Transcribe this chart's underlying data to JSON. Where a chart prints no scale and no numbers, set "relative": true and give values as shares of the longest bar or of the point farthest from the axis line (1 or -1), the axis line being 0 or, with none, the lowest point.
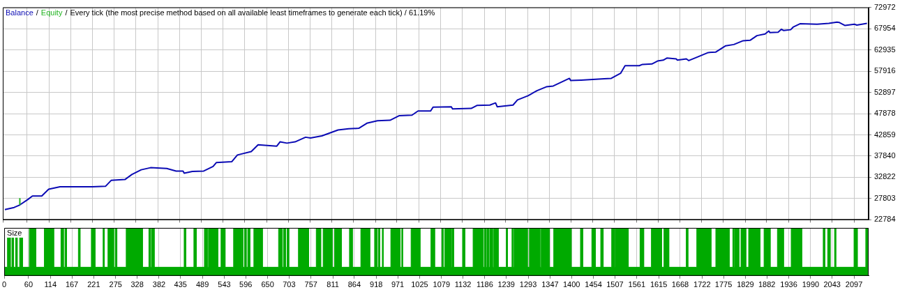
{
  "chart_data": [
    {
      "type": "line",
      "annotations": [
        "/",
        "/",
        "Every tick (the most precise method based on all available least timeframes to generate each tick) / 61.19%"
      ],
      "legend": "top left",
      "grid": true,
      "tick_labels": "y",
      "xlim": [
        0,
        2133
      ],
      "xticks": [
        0,
        60,
        114,
        167,
        221,
        275,
        328,
        382,
        435,
        489,
        543,
        596,
        650,
        703,
        757,
        811,
        864,
        918,
        971,
        1025,
        1079,
        1132,
        1186,
        1239,
        1293,
        1347,
        1400,
        1454,
        1507,
        1561,
        1615,
        1668,
        1722,
        1775,
        1829,
        1882,
        1936,
        1990,
        2043,
        2097
      ],
      "ylim": [
        22784,
        72972
      ],
      "yticks": [
        22784,
        27803,
        32822,
        37840,
        42859,
        47878,
        52897,
        57916,
        62935,
        67954,
        72972
      ],
      "series": [
        {
          "name": "Balance",
          "color": "#0a0ab4",
          "x": [
            5,
            28,
            42,
            62,
            73,
            96,
            113,
            141,
            193,
            221,
            253,
            267,
            301,
            318,
            341,
            364,
            404,
            427,
            444,
            447,
            467,
            495,
            518,
            526,
            564,
            578,
            612,
            629,
            646,
            675,
            683,
            700,
            720,
            746,
            758,
            786,
            826,
            852,
            877,
            897,
            923,
            954,
            977,
            1008,
            1023,
            1054,
            1060,
            1105,
            1108,
            1154,
            1168,
            1200,
            1214,
            1218,
            1257,
            1268,
            1294,
            1316,
            1339,
            1356,
            1396,
            1399,
            1425,
            1482,
            1499,
            1522,
            1533,
            1568,
            1576,
            1599,
            1613,
            1627,
            1636,
            1659,
            1662,
            1684,
            1690,
            1710,
            1738,
            1756,
            1781,
            1801,
            1824,
            1841,
            1858,
            1878,
            1887,
            1890,
            1910,
            1918,
            1924,
            1941,
            1947,
            1964,
            2006,
            2035,
            2055,
            2061,
            2075,
            2098,
            2104,
            2129
          ],
          "values": [
            25200,
            25700,
            26300,
            27600,
            28400,
            28400,
            30000,
            30600,
            30600,
            30600,
            30700,
            32100,
            32300,
            33500,
            34600,
            35100,
            34900,
            34300,
            34300,
            33800,
            34200,
            34300,
            35400,
            36300,
            36500,
            38100,
            38900,
            40500,
            40400,
            40200,
            41200,
            40900,
            41200,
            42300,
            42100,
            42600,
            44000,
            44300,
            44400,
            45600,
            46200,
            46300,
            47400,
            47500,
            48500,
            48500,
            49400,
            49500,
            49000,
            49100,
            49800,
            49900,
            50400,
            49500,
            49900,
            51100,
            52100,
            53300,
            54200,
            54400,
            56200,
            55700,
            55800,
            56100,
            56200,
            57400,
            59200,
            59200,
            59500,
            59600,
            60300,
            60500,
            61000,
            60800,
            60500,
            60800,
            60400,
            61200,
            62300,
            62400,
            63900,
            64200,
            65100,
            65200,
            66300,
            66700,
            67400,
            67000,
            67100,
            67800,
            67500,
            67700,
            68300,
            69100,
            69000,
            69200,
            69500,
            69400,
            68700,
            69000,
            68800,
            69200
          ]
        },
        {
          "name": "Equity",
          "color": "#22b422",
          "x": [
            42,
            42
          ],
          "values": [
            26300,
            27900
          ]
        }
      ]
    },
    {
      "type": "area",
      "title": "Size",
      "relative": true,
      "grid": "x",
      "tick_labels": "x",
      "xlim": [
        0,
        2133
      ],
      "xticks": [
        0,
        60,
        114,
        167,
        221,
        275,
        328,
        382,
        435,
        489,
        543,
        596,
        650,
        703,
        757,
        811,
        864,
        918,
        971,
        1025,
        1079,
        1132,
        1186,
        1239,
        1293,
        1347,
        1400,
        1454,
        1507,
        1561,
        1615,
        1668,
        1722,
        1775,
        1829,
        1882,
        1936,
        1990,
        2043,
        2097
      ],
      "series": [
        {
          "color": "#00aa00",
          "x": [
            0,
            8,
            8,
            15,
            15,
            19,
            19,
            23,
            23,
            28,
            28,
            32,
            32,
            38,
            38,
            45,
            45,
            62,
            62,
            78,
            78,
            99,
            99,
            122,
            122,
            140,
            140,
            146,
            146,
            150,
            150,
            154,
            154,
            183,
            183,
            187,
            187,
            215,
            215,
            224,
            224,
            244,
            244,
            247,
            247,
            256,
            256,
            270,
            270,
            274,
            274,
            278,
            278,
            301,
            301,
            341,
            341,
            357,
            357,
            361,
            361,
            364,
            364,
            370,
            370,
            444,
            444,
            448,
            448,
            468,
            468,
            474,
            474,
            494,
            494,
            501,
            501,
            504,
            504,
            527,
            527,
            535,
            535,
            545,
            545,
            566,
            566,
            584,
            584,
            586,
            586,
            589,
            589,
            593,
            593,
            597,
            597,
            601,
            601,
            606,
            606,
            616,
            616,
            637,
            637,
            677,
            677,
            686,
            686,
            689,
            689,
            694,
            694,
            698,
            698,
            702,
            702,
            726,
            726,
            751,
            751,
            770,
            770,
            781,
            781,
            787,
            787,
            809,
            809,
            815,
            815,
            832,
            832,
            852,
            852,
            859,
            859,
            880,
            880,
            902,
            902,
            914,
            914,
            920,
            920,
            923,
            923,
            927,
            927,
            933,
            933,
            935,
            935,
            954,
            954,
            977,
            977,
            981,
            981,
            983,
            983,
            1004,
            1004,
            1026,
            1026,
            1053,
            1053,
            1062,
            1062,
            1080,
            1080,
            1083,
            1083,
            1087,
            1087,
            1103,
            1103,
            1105,
            1105,
            1109,
            1109,
            1131,
            1131,
            1137,
            1137,
            1157,
            1157,
            1182,
            1182,
            1185,
            1185,
            1188,
            1188,
            1191,
            1191,
            1195,
            1195,
            1198,
            1198,
            1205,
            1205,
            1208,
            1208,
            1219,
            1219,
            1239,
            1239,
            1242,
            1242,
            1253,
            1253,
            1255,
            1255,
            1258,
            1258,
            1291,
            1291,
            1296,
            1296,
            1322,
            1322,
            1325,
            1325,
            1345,
            1345,
            1356,
            1356,
            1399,
            1399,
            1422,
            1422,
            1428,
            1428,
            1450,
            1450,
            1459,
            1459,
            1472,
            1472,
            1478,
            1478,
            1499,
            1499,
            1506,
            1506,
            1508,
            1508,
            1540,
            1540,
            1569,
            1569,
            1578,
            1578,
            1597,
            1597,
            1622,
            1622,
            1628,
            1628,
            1640,
            1640,
            1683,
            1683,
            1687,
            1687,
            1709,
            1709,
            1744,
            1744,
            1756,
            1756,
            1789,
            1789,
            1798,
            1798,
            1800,
            1800,
            1802,
            1802,
            1813,
            1813,
            1818,
            1818,
            1830,
            1830,
            1837,
            1837,
            1865,
            1865,
            1875,
            1875,
            1890,
            1890,
            1908,
            1908,
            1923,
            1923,
            1942,
            1942,
            1968,
            1968,
            2021,
            2021,
            2025,
            2025,
            2032,
            2032,
            2038,
            2038,
            2049,
            2049,
            2052,
            2052,
            2097,
            2097,
            2105,
            2105,
            2126,
            2126,
            2133
          ],
          "values": [
            0.18,
            0.18,
            1,
            1,
            0.18,
            0.18,
            1,
            1,
            0.18,
            0.18,
            1,
            1,
            0.18,
            0.18,
            1,
            1,
            0.18,
            0.18,
            1,
            1,
            0.18,
            0.18,
            1,
            1,
            0.18,
            0.18,
            1,
            1,
            0.18,
            0.18,
            1,
            1,
            0.18,
            0.18,
            1,
            1,
            0.18,
            0.18,
            1,
            1,
            0.18,
            0.18,
            1,
            1,
            0.18,
            0.18,
            1,
            1,
            0.18,
            0.18,
            1,
            1,
            0.18,
            0.18,
            1,
            1,
            0.18,
            0.18,
            1,
            1,
            0.18,
            0.18,
            1,
            1,
            0.18,
            0.18,
            1,
            1,
            0.18,
            0.18,
            1,
            1,
            0.18,
            0.18,
            1,
            1,
            0.18,
            0.18,
            1,
            1,
            0.18,
            0.18,
            1,
            1,
            0.18,
            0.18,
            1,
            1,
            0.18,
            0.18,
            1,
            1,
            0.18,
            0.18,
            1,
            1,
            0.18,
            0.18,
            1,
            1,
            0.18,
            0.18,
            1,
            1,
            0.18,
            0.18,
            1,
            1,
            0.18,
            0.18,
            1,
            1,
            0.18,
            0.18,
            1,
            1,
            0.18,
            0.18,
            1,
            1,
            0.18,
            0.18,
            1,
            1,
            0.18,
            0.18,
            1,
            1,
            0.18,
            0.18,
            1,
            1,
            0.18,
            0.18,
            1,
            1,
            0.18,
            0.18,
            1,
            1,
            0.18,
            0.18,
            1,
            1,
            0.18,
            0.18,
            1,
            1,
            0.18,
            0.18,
            1,
            1,
            0.18,
            0.18,
            1,
            1,
            0.18,
            0.18,
            1,
            1,
            0.18,
            0.18,
            1,
            1,
            0.18,
            0.18,
            1,
            1,
            0.18,
            0.18,
            1,
            1,
            0.18,
            0.18,
            1,
            1,
            0.18,
            0.18,
            1,
            1,
            0.18,
            0.18,
            1,
            1,
            0.18,
            0.18,
            1,
            1,
            0.18,
            0.18,
            1,
            1,
            0.18,
            0.18,
            1,
            1,
            0.18,
            0.18,
            1,
            1,
            0.18,
            0.18,
            1,
            1,
            0.18,
            0.18,
            1,
            1,
            0.18,
            0.18,
            1,
            1,
            0.18,
            0.18,
            1,
            1,
            0.18,
            0.18,
            1,
            1,
            0.18,
            0.18,
            1,
            1,
            0.18,
            0.18,
            1,
            1,
            0.18,
            0.18,
            1,
            1,
            0.18,
            0.18,
            1,
            1,
            0.18,
            0.18,
            1,
            1,
            0.18,
            0.18,
            1,
            1,
            0.18,
            0.18,
            1,
            1,
            0.18,
            0.18,
            1,
            1,
            0.18,
            0.18,
            1,
            1,
            0.18,
            0.18,
            1,
            1,
            0.18,
            0.18,
            1,
            1,
            0.18,
            0.18,
            1,
            1,
            0.18,
            0.18,
            1,
            1,
            0.18,
            0.18,
            1,
            1,
            0.18,
            0.18,
            1,
            1,
            0.18,
            0.18,
            1,
            1,
            0.18,
            0.18,
            1,
            1,
            0.18,
            0.18,
            1,
            1,
            0.18,
            0.18,
            1,
            1,
            0.18,
            0.18,
            1,
            1,
            0.18,
            0.18,
            1,
            1,
            0.18,
            0.18,
            1,
            1,
            0.18,
            0.18,
            1,
            1,
            0.18,
            0.18,
            1,
            1,
            0.18,
            0.18,
            1,
            1
          ]
        }
      ]
    }
  ]
}
